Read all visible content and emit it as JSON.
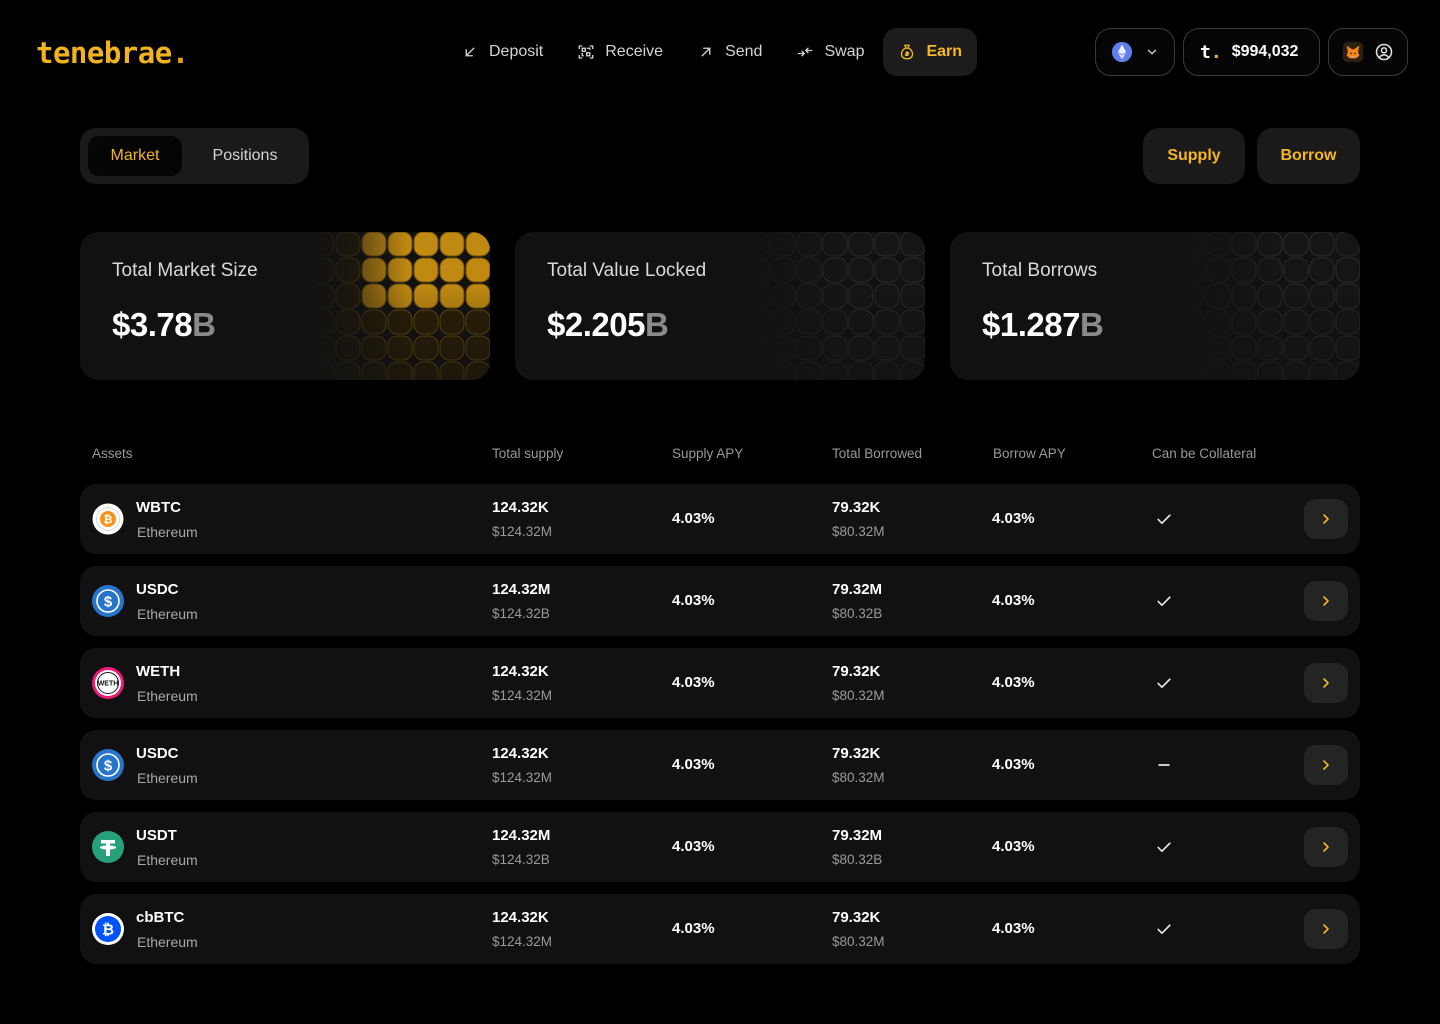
{
  "brand": {
    "logo": "tenebrae",
    "logo_dot": "."
  },
  "nav": {
    "items": [
      {
        "label": "Deposit",
        "icon": "arrow-down-left-icon"
      },
      {
        "label": "Receive",
        "icon": "qr-scan-icon"
      },
      {
        "label": "Send",
        "icon": "arrow-up-right-icon"
      },
      {
        "label": "Swap",
        "icon": "swap-arrows-icon"
      },
      {
        "label": "Earn",
        "icon": "money-bag-icon",
        "active": true
      }
    ]
  },
  "wallet": {
    "chain_icon": "ethereum-icon",
    "balance_mark": "t",
    "balance_mark_dot": ".",
    "balance": "$994,032",
    "wallet_icon": "metamask-fox-icon",
    "profile_icon": "user-circle-icon"
  },
  "tabs": {
    "market": "Market",
    "positions": "Positions"
  },
  "actions": {
    "supply": "Supply",
    "borrow": "Borrow"
  },
  "stats": [
    {
      "label": "Total Market Size",
      "amount": "$3.78",
      "unit": "B",
      "accent": "#f5b625"
    },
    {
      "label": "Total Value Locked",
      "amount": "$2.205",
      "unit": "B",
      "accent": "#3a3a3a"
    },
    {
      "label": "Total Borrows",
      "amount": "$1.287",
      "unit": "B",
      "accent": "#3a3a3a"
    }
  ],
  "table": {
    "headers": [
      "Assets",
      "Total supply",
      "Supply APY",
      "Total Borrowed",
      "Borrow APY",
      "Can be Collateral"
    ],
    "rows": [
      {
        "symbol": "WBTC",
        "network": "Ethereum",
        "icon": "wbtc-icon",
        "total_supply": "124.32K",
        "total_supply_usd": "$124.32M",
        "supply_apy": "4.03%",
        "total_borrowed": "79.32K",
        "total_borrowed_usd": "$80.32M",
        "borrow_apy": "4.03%",
        "collateral": true
      },
      {
        "symbol": "USDC",
        "network": "Ethereum",
        "icon": "usdc-icon",
        "total_supply": "124.32M",
        "total_supply_usd": "$124.32B",
        "supply_apy": "4.03%",
        "total_borrowed": "79.32M",
        "total_borrowed_usd": "$80.32B",
        "borrow_apy": "4.03%",
        "collateral": true
      },
      {
        "symbol": "WETH",
        "network": "Ethereum",
        "icon": "weth-icon",
        "total_supply": "124.32K",
        "total_supply_usd": "$124.32M",
        "supply_apy": "4.03%",
        "total_borrowed": "79.32K",
        "total_borrowed_usd": "$80.32M",
        "borrow_apy": "4.03%",
        "collateral": true
      },
      {
        "symbol": "USDC",
        "network": "Ethereum",
        "icon": "usdc-icon",
        "total_supply": "124.32K",
        "total_supply_usd": "$124.32M",
        "supply_apy": "4.03%",
        "total_borrowed": "79.32K",
        "total_borrowed_usd": "$80.32M",
        "borrow_apy": "4.03%",
        "collateral": false
      },
      {
        "symbol": "USDT",
        "network": "Ethereum",
        "icon": "usdt-icon",
        "total_supply": "124.32M",
        "total_supply_usd": "$124.32B",
        "supply_apy": "4.03%",
        "total_borrowed": "79.32M",
        "total_borrowed_usd": "$80.32B",
        "borrow_apy": "4.03%",
        "collateral": true
      },
      {
        "symbol": "cbBTC",
        "network": "Ethereum",
        "icon": "cbbtc-icon",
        "total_supply": "124.32K",
        "total_supply_usd": "$124.32M",
        "supply_apy": "4.03%",
        "total_borrowed": "79.32K",
        "total_borrowed_usd": "$80.32M",
        "borrow_apy": "4.03%",
        "collateral": true
      }
    ]
  },
  "colors": {
    "accent": "#f5b625",
    "background": "#000000",
    "surface": "#111111"
  }
}
